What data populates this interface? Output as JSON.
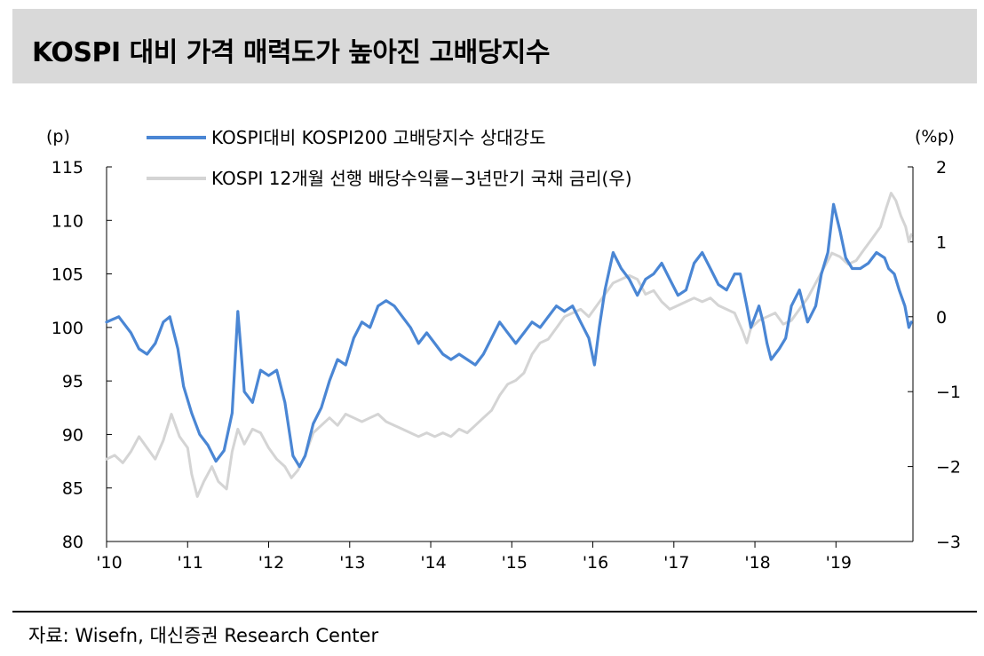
{
  "title": "KOSPI 대비 가격 매력도가 높아진 고배당지수",
  "source": "자료: Wisefn, 대신증권 Research Center",
  "chart_data": {
    "type": "line",
    "left_axis_unit": "(p)",
    "right_axis_unit": "(%p)",
    "left_ylim": [
      80,
      115
    ],
    "left_ticks": [
      "115",
      "110",
      "105",
      "100",
      "95",
      "90",
      "85",
      "80"
    ],
    "right_ylim": [
      -3,
      2
    ],
    "right_ticks": [
      "2",
      "1",
      "0",
      "−1",
      "−2",
      "−3"
    ],
    "x_ticks": [
      "'10",
      "'11",
      "'12",
      "'13",
      "'14",
      "'15",
      "'16",
      "'17",
      "'18",
      "'19"
    ],
    "x_range": [
      2010.0,
      2019.95
    ],
    "grid": false,
    "legend_position": "top-left",
    "series": [
      {
        "name": "KOSPI대비 KOSPI200 고배당지수 상대강도",
        "axis": "left",
        "color": "#4a86d4",
        "points": [
          [
            2010.0,
            100.5
          ],
          [
            2010.15,
            101.0
          ],
          [
            2010.3,
            99.5
          ],
          [
            2010.4,
            98.0
          ],
          [
            2010.5,
            97.5
          ],
          [
            2010.6,
            98.5
          ],
          [
            2010.7,
            100.5
          ],
          [
            2010.78,
            101.0
          ],
          [
            2010.88,
            98.0
          ],
          [
            2010.95,
            94.5
          ],
          [
            2011.05,
            92.0
          ],
          [
            2011.15,
            90.0
          ],
          [
            2011.25,
            89.0
          ],
          [
            2011.35,
            87.5
          ],
          [
            2011.45,
            88.5
          ],
          [
            2011.55,
            92.0
          ],
          [
            2011.62,
            101.5
          ],
          [
            2011.7,
            94.0
          ],
          [
            2011.8,
            93.0
          ],
          [
            2011.9,
            96.0
          ],
          [
            2012.0,
            95.5
          ],
          [
            2012.1,
            96.0
          ],
          [
            2012.2,
            93.0
          ],
          [
            2012.3,
            88.0
          ],
          [
            2012.38,
            87.0
          ],
          [
            2012.45,
            88.0
          ],
          [
            2012.55,
            91.0
          ],
          [
            2012.65,
            92.5
          ],
          [
            2012.75,
            95.0
          ],
          [
            2012.85,
            97.0
          ],
          [
            2012.95,
            96.5
          ],
          [
            2013.05,
            99.0
          ],
          [
            2013.15,
            100.5
          ],
          [
            2013.25,
            100.0
          ],
          [
            2013.35,
            102.0
          ],
          [
            2013.45,
            102.5
          ],
          [
            2013.55,
            102.0
          ],
          [
            2013.65,
            101.0
          ],
          [
            2013.75,
            100.0
          ],
          [
            2013.85,
            98.5
          ],
          [
            2013.95,
            99.5
          ],
          [
            2014.05,
            98.5
          ],
          [
            2014.15,
            97.5
          ],
          [
            2014.25,
            97.0
          ],
          [
            2014.35,
            97.5
          ],
          [
            2014.45,
            97.0
          ],
          [
            2014.55,
            96.5
          ],
          [
            2014.65,
            97.5
          ],
          [
            2014.75,
            99.0
          ],
          [
            2014.85,
            100.5
          ],
          [
            2014.95,
            99.5
          ],
          [
            2015.05,
            98.5
          ],
          [
            2015.15,
            99.5
          ],
          [
            2015.25,
            100.5
          ],
          [
            2015.35,
            100.0
          ],
          [
            2015.45,
            101.0
          ],
          [
            2015.55,
            102.0
          ],
          [
            2015.65,
            101.5
          ],
          [
            2015.75,
            102.0
          ],
          [
            2015.85,
            100.5
          ],
          [
            2015.95,
            99.0
          ],
          [
            2016.02,
            96.5
          ],
          [
            2016.08,
            100.0
          ],
          [
            2016.15,
            103.5
          ],
          [
            2016.25,
            107.0
          ],
          [
            2016.35,
            105.5
          ],
          [
            2016.45,
            104.5
          ],
          [
            2016.55,
            103.0
          ],
          [
            2016.65,
            104.5
          ],
          [
            2016.75,
            105.0
          ],
          [
            2016.85,
            106.0
          ],
          [
            2016.95,
            104.5
          ],
          [
            2017.05,
            103.0
          ],
          [
            2017.15,
            103.5
          ],
          [
            2017.25,
            106.0
          ],
          [
            2017.35,
            107.0
          ],
          [
            2017.45,
            105.5
          ],
          [
            2017.55,
            104.0
          ],
          [
            2017.65,
            103.5
          ],
          [
            2017.75,
            105.0
          ],
          [
            2017.82,
            105.0
          ],
          [
            2017.9,
            102.0
          ],
          [
            2017.95,
            100.0
          ],
          [
            2018.0,
            101.0
          ],
          [
            2018.05,
            102.0
          ],
          [
            2018.1,
            100.5
          ],
          [
            2018.15,
            98.5
          ],
          [
            2018.2,
            97.0
          ],
          [
            2018.3,
            98.0
          ],
          [
            2018.38,
            99.0
          ],
          [
            2018.45,
            102.0
          ],
          [
            2018.55,
            103.5
          ],
          [
            2018.65,
            100.5
          ],
          [
            2018.75,
            102.0
          ],
          [
            2018.82,
            105.0
          ],
          [
            2018.9,
            107.0
          ],
          [
            2018.97,
            111.5
          ],
          [
            2019.05,
            109.0
          ],
          [
            2019.12,
            106.5
          ],
          [
            2019.2,
            105.5
          ],
          [
            2019.3,
            105.5
          ],
          [
            2019.4,
            106.0
          ],
          [
            2019.5,
            107.0
          ],
          [
            2019.6,
            106.5
          ],
          [
            2019.65,
            105.5
          ],
          [
            2019.72,
            105.0
          ],
          [
            2019.78,
            103.5
          ],
          [
            2019.85,
            102.0
          ],
          [
            2019.9,
            100.0
          ],
          [
            2019.93,
            100.5
          ]
        ]
      },
      {
        "name": "KOSPI 12개월 선행 배당수익률−3년만기 국채 금리(우)",
        "axis": "right",
        "color": "#d4d4d4",
        "points": [
          [
            2010.0,
            -1.9
          ],
          [
            2010.1,
            -1.85
          ],
          [
            2010.2,
            -1.95
          ],
          [
            2010.3,
            -1.8
          ],
          [
            2010.4,
            -1.6
          ],
          [
            2010.5,
            -1.75
          ],
          [
            2010.6,
            -1.9
          ],
          [
            2010.7,
            -1.65
          ],
          [
            2010.8,
            -1.3
          ],
          [
            2010.9,
            -1.6
          ],
          [
            2011.0,
            -1.75
          ],
          [
            2011.05,
            -2.1
          ],
          [
            2011.12,
            -2.4
          ],
          [
            2011.2,
            -2.2
          ],
          [
            2011.3,
            -2.0
          ],
          [
            2011.38,
            -2.2
          ],
          [
            2011.48,
            -2.3
          ],
          [
            2011.55,
            -1.8
          ],
          [
            2011.62,
            -1.5
          ],
          [
            2011.7,
            -1.7
          ],
          [
            2011.8,
            -1.5
          ],
          [
            2011.9,
            -1.55
          ],
          [
            2012.0,
            -1.75
          ],
          [
            2012.1,
            -1.9
          ],
          [
            2012.2,
            -2.0
          ],
          [
            2012.28,
            -2.15
          ],
          [
            2012.36,
            -2.05
          ],
          [
            2012.45,
            -1.85
          ],
          [
            2012.55,
            -1.55
          ],
          [
            2012.65,
            -1.45
          ],
          [
            2012.75,
            -1.35
          ],
          [
            2012.85,
            -1.45
          ],
          [
            2012.95,
            -1.3
          ],
          [
            2013.05,
            -1.35
          ],
          [
            2013.15,
            -1.4
          ],
          [
            2013.25,
            -1.35
          ],
          [
            2013.35,
            -1.3
          ],
          [
            2013.45,
            -1.4
          ],
          [
            2013.55,
            -1.45
          ],
          [
            2013.65,
            -1.5
          ],
          [
            2013.75,
            -1.55
          ],
          [
            2013.85,
            -1.6
          ],
          [
            2013.95,
            -1.55
          ],
          [
            2014.05,
            -1.6
          ],
          [
            2014.15,
            -1.55
          ],
          [
            2014.25,
            -1.6
          ],
          [
            2014.35,
            -1.5
          ],
          [
            2014.45,
            -1.55
          ],
          [
            2014.55,
            -1.45
          ],
          [
            2014.65,
            -1.35
          ],
          [
            2014.75,
            -1.25
          ],
          [
            2014.85,
            -1.05
          ],
          [
            2014.95,
            -0.9
          ],
          [
            2015.05,
            -0.85
          ],
          [
            2015.15,
            -0.75
          ],
          [
            2015.25,
            -0.5
          ],
          [
            2015.35,
            -0.35
          ],
          [
            2015.45,
            -0.3
          ],
          [
            2015.55,
            -0.15
          ],
          [
            2015.65,
            0.0
          ],
          [
            2015.75,
            0.05
          ],
          [
            2015.85,
            0.1
          ],
          [
            2015.95,
            0.0
          ],
          [
            2016.05,
            0.15
          ],
          [
            2016.15,
            0.3
          ],
          [
            2016.25,
            0.45
          ],
          [
            2016.35,
            0.5
          ],
          [
            2016.45,
            0.55
          ],
          [
            2016.55,
            0.5
          ],
          [
            2016.65,
            0.3
          ],
          [
            2016.75,
            0.35
          ],
          [
            2016.85,
            0.2
          ],
          [
            2016.95,
            0.1
          ],
          [
            2017.05,
            0.15
          ],
          [
            2017.15,
            0.2
          ],
          [
            2017.25,
            0.25
          ],
          [
            2017.35,
            0.2
          ],
          [
            2017.45,
            0.25
          ],
          [
            2017.55,
            0.15
          ],
          [
            2017.65,
            0.1
          ],
          [
            2017.75,
            0.05
          ],
          [
            2017.85,
            -0.2
          ],
          [
            2017.9,
            -0.35
          ],
          [
            2017.95,
            -0.15
          ],
          [
            2018.05,
            -0.05
          ],
          [
            2018.15,
            0.0
          ],
          [
            2018.25,
            0.05
          ],
          [
            2018.35,
            -0.1
          ],
          [
            2018.45,
            -0.05
          ],
          [
            2018.55,
            0.1
          ],
          [
            2018.65,
            0.25
          ],
          [
            2018.75,
            0.45
          ],
          [
            2018.85,
            0.65
          ],
          [
            2018.95,
            0.85
          ],
          [
            2019.05,
            0.8
          ],
          [
            2019.15,
            0.7
          ],
          [
            2019.25,
            0.75
          ],
          [
            2019.35,
            0.9
          ],
          [
            2019.45,
            1.05
          ],
          [
            2019.55,
            1.2
          ],
          [
            2019.62,
            1.45
          ],
          [
            2019.68,
            1.65
          ],
          [
            2019.74,
            1.55
          ],
          [
            2019.8,
            1.35
          ],
          [
            2019.86,
            1.2
          ],
          [
            2019.9,
            1.0
          ],
          [
            2019.93,
            1.1
          ]
        ]
      }
    ]
  }
}
